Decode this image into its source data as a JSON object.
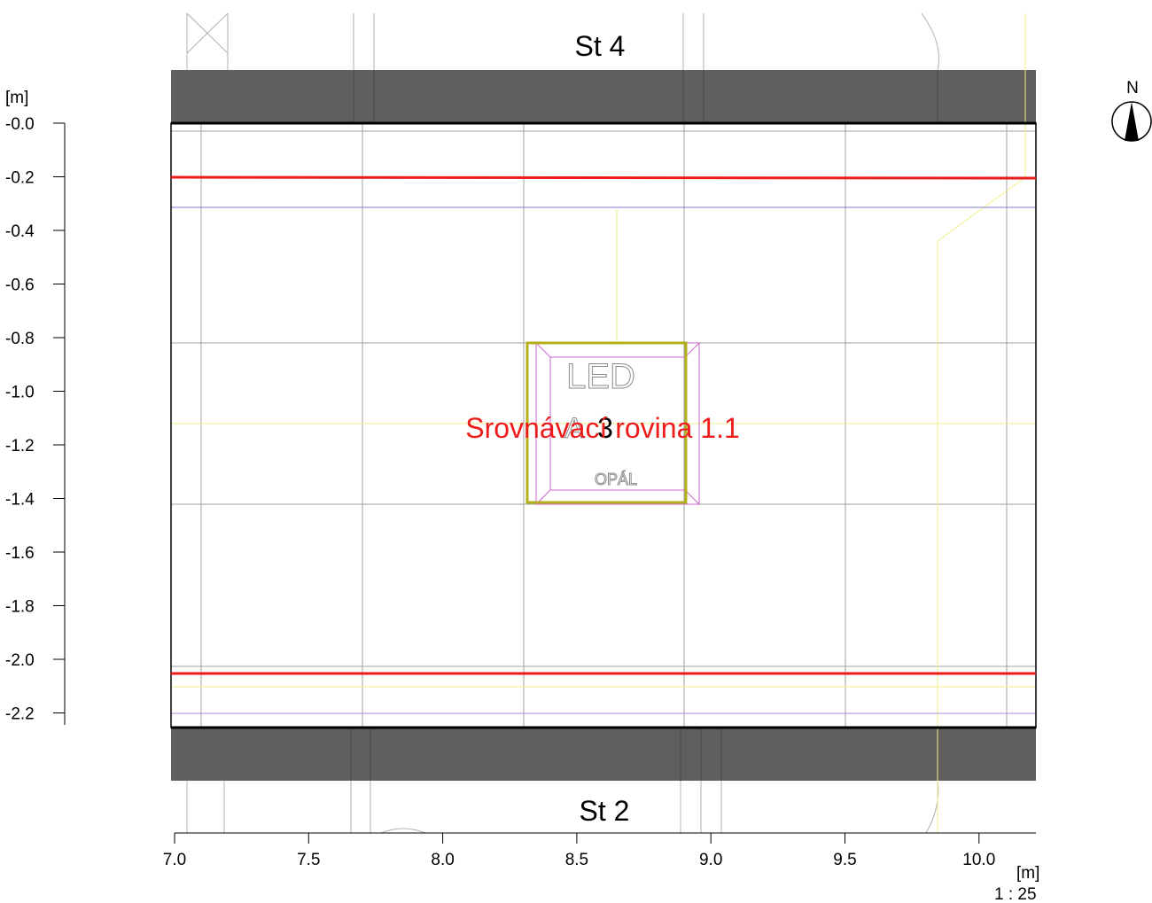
{
  "walls": {
    "top_label": "St 4",
    "bottom_label": "St 2"
  },
  "luminaire": {
    "id_number": "3",
    "id_letter": "A",
    "type_text": "LED",
    "diffuser_text": "OPÁL"
  },
  "calculation_plane": {
    "label": "Srovnávací rovina 1.1",
    "color": "#ee1b1b"
  },
  "axes": {
    "y_unit": "[m]",
    "x_unit": "[m]",
    "y_ticks": [
      "-0.0",
      "-0.2",
      "-0.4",
      "-0.6",
      "-0.8",
      "-1.0",
      "-1.2",
      "-1.4",
      "-1.6",
      "-1.8",
      "-2.0",
      "-2.2"
    ],
    "x_ticks": [
      "7.0",
      "7.5",
      "8.0",
      "8.5",
      "9.0",
      "9.5",
      "10.0"
    ]
  },
  "scale_text": "1 : 25",
  "compass": {
    "north_label": "N"
  },
  "colors": {
    "wall": "#5f5f5f",
    "room_outline": "#000000",
    "grid": "#a0a0a0",
    "plane": "#ee1b1b",
    "luminaire_frame": "#b5b01a",
    "luminaire_inner": "#cc66cc",
    "aux_yellow": "#f2ee8a",
    "aux_blue": "#7d7dd6"
  }
}
